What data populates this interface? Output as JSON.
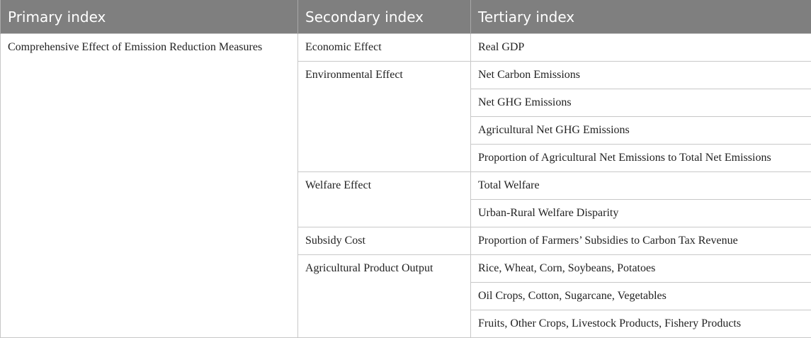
{
  "headers": [
    "Primary index",
    "Secondary index",
    "Tertiary index"
  ],
  "primary": "Comprehensive Effect of Emission Reduction Measures",
  "groups": [
    {
      "secondary": "Economic Effect",
      "tertiary": [
        "Real GDP"
      ]
    },
    {
      "secondary": "Environmental Effect",
      "tertiary": [
        "Net Carbon Emissions",
        "Net GHG Emissions",
        "Agricultural Net GHG Emissions",
        "Proportion of Agricultural Net Emissions to Total Net Emissions"
      ]
    },
    {
      "secondary": "Welfare Effect",
      "tertiary": [
        "Total Welfare",
        "Urban-Rural Welfare Disparity"
      ]
    },
    {
      "secondary": "Subsidy Cost",
      "tertiary": [
        "Proportion of Farmers’ Subsidies to Carbon Tax Revenue"
      ]
    },
    {
      "secondary": "Agricultural Product Output",
      "tertiary": [
        "Rice, Wheat, Corn, Soybeans, Potatoes",
        "Oil Crops, Cotton, Sugarcane, Vegetables",
        "Fruits, Other Crops, Livestock Products, Fishery Products"
      ]
    }
  ]
}
